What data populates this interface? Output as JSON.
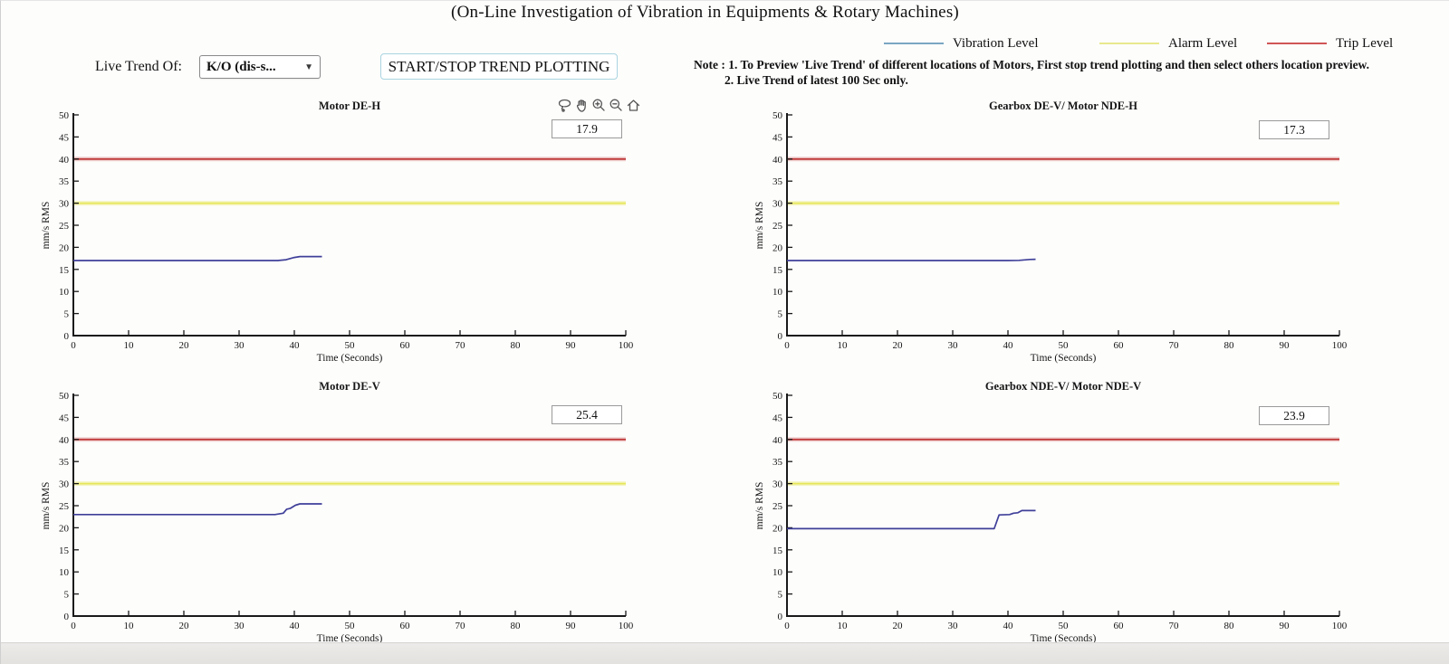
{
  "page": {
    "title": "(On-Line Investigation  of Vibration in Equipments & Rotary Machines)"
  },
  "legend": {
    "items": [
      {
        "label": "Vibration Level",
        "color": "#7ba6c2"
      },
      {
        "label": "Alarm Level",
        "color": "#e9e98e"
      },
      {
        "label": "Trip Level",
        "color": "#d05555"
      }
    ]
  },
  "controls": {
    "live_trend_label": "Live Trend Of:",
    "dropdown_value": "K/O (dis-s...",
    "dropdown_arrow": "▼",
    "start_stop_button": "START/STOP TREND PLOTTING"
  },
  "note": {
    "line1": "Note : 1.  To Preview 'Live Trend' of different locations of Motors, First stop trend plotting and then select others location preview.",
    "line2": "2. Live Trend of latest 100 Sec only."
  },
  "toolbar": {
    "icons": [
      "lasso-select",
      "pan-hand",
      "zoom-in",
      "zoom-out",
      "home"
    ]
  },
  "chart_style": {
    "vibration_color": "#3f3f99",
    "alarm_color": "#e6e65a",
    "trip_color": "#c03a3a",
    "axis_color": "#1a1a1a"
  },
  "chart_data": [
    {
      "type": "line",
      "title": "Motor DE-H",
      "current_value": "17.9",
      "xlabel": "Time (Seconds)",
      "ylabel": "mm/s RMS",
      "xlim": [
        0,
        100
      ],
      "ylim": [
        0,
        50
      ],
      "xtick_step": 10,
      "ytick_step": 5,
      "alarm_level": 30,
      "trip_level": 40,
      "series": [
        {
          "name": "Vibration Level",
          "x": [
            0,
            37,
            38.5,
            40,
            41,
            45
          ],
          "y": [
            17,
            17,
            17.2,
            17.7,
            17.9,
            17.9
          ]
        }
      ]
    },
    {
      "type": "line",
      "title": "Gearbox DE-V/ Motor NDE-H",
      "current_value": "17.3",
      "xlabel": "Time (Seconds)",
      "ylabel": "mm/s RMS",
      "xlim": [
        0,
        100
      ],
      "ylim": [
        0,
        50
      ],
      "xtick_step": 10,
      "ytick_step": 5,
      "alarm_level": 30,
      "trip_level": 40,
      "series": [
        {
          "name": "Vibration Level",
          "x": [
            0,
            40,
            42,
            44,
            45
          ],
          "y": [
            17,
            17,
            17.05,
            17.25,
            17.3
          ]
        }
      ]
    },
    {
      "type": "line",
      "title": "Motor DE-V",
      "current_value": "25.4",
      "xlabel": "Time (Seconds)",
      "ylabel": "mm/s RMS",
      "xlim": [
        0,
        100
      ],
      "ylim": [
        0,
        50
      ],
      "xtick_step": 10,
      "ytick_step": 5,
      "alarm_level": 30,
      "trip_level": 40,
      "series": [
        {
          "name": "Vibration Level",
          "x": [
            0,
            36.5,
            38,
            38.6,
            39.3,
            40.2,
            41,
            45
          ],
          "y": [
            23,
            23,
            23.3,
            24.2,
            24.4,
            25.1,
            25.4,
            25.4
          ]
        }
      ]
    },
    {
      "type": "line",
      "title": "Gearbox NDE-V/ Motor NDE-V",
      "current_value": "23.9",
      "xlabel": "Time (Seconds)",
      "ylabel": "mm/s RMS",
      "xlim": [
        0,
        100
      ],
      "ylim": [
        0,
        50
      ],
      "xtick_step": 10,
      "ytick_step": 5,
      "alarm_level": 30,
      "trip_level": 40,
      "series": [
        {
          "name": "Vibration Level",
          "x": [
            0,
            37.5,
            38.4,
            40.3,
            41,
            41.8,
            42.5,
            45
          ],
          "y": [
            19.8,
            19.8,
            22.9,
            23.0,
            23.3,
            23.4,
            23.9,
            23.9
          ]
        }
      ]
    }
  ]
}
